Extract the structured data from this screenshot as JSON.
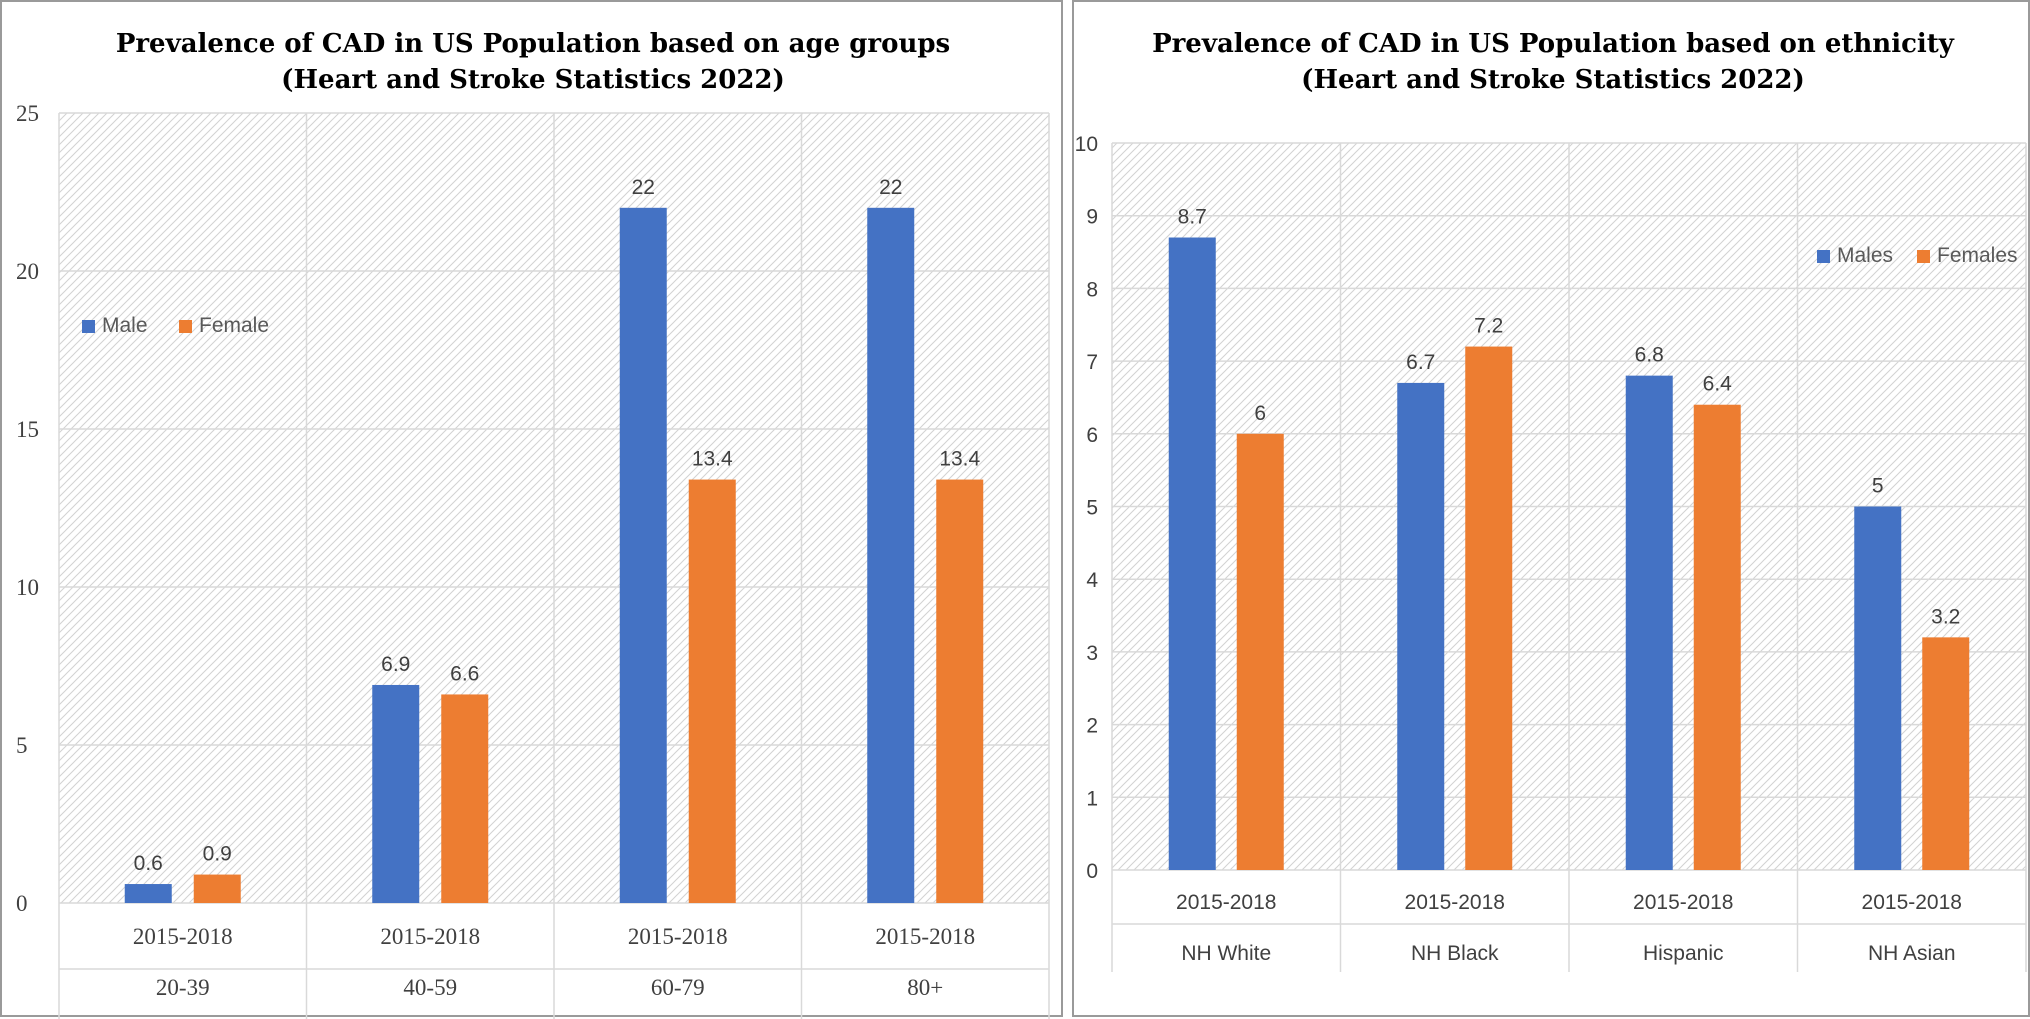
{
  "colors": {
    "male": "#4472C4",
    "female": "#ED7D31",
    "grid": "#D9D9D9",
    "text": "#404040"
  },
  "chart_data": [
    {
      "type": "bar",
      "title": "Prevalence of CAD in US Population  based on age groups",
      "subtitle": "(Heart and  Stroke Statistics 2022)",
      "period_label": "2015-2018",
      "categories": [
        "20-39",
        "40-59",
        "60-79",
        "80+"
      ],
      "series": [
        {
          "name": "Male",
          "values": [
            0.6,
            6.9,
            22,
            22
          ]
        },
        {
          "name": "Female",
          "values": [
            0.9,
            6.6,
            13.4,
            13.4
          ]
        }
      ],
      "ylim": [
        0,
        25
      ],
      "yticks": [
        0,
        5,
        10,
        15,
        20,
        25
      ],
      "legend_position": "left",
      "xlabel": "",
      "ylabel": "",
      "grid": true
    },
    {
      "type": "bar",
      "title": "Prevalence of CAD in US Population based on ethnicity",
      "subtitle": "(Heart and Stroke Statistics 2022)",
      "period_label": "2015-2018",
      "categories": [
        "NH White",
        "NH Black",
        "Hispanic",
        "NH Asian"
      ],
      "series": [
        {
          "name": "Males",
          "values": [
            8.7,
            6.7,
            6.8,
            5
          ]
        },
        {
          "name": "Females",
          "values": [
            6,
            7.2,
            6.4,
            3.2
          ]
        }
      ],
      "ylim": [
        0,
        10
      ],
      "yticks": [
        0,
        1,
        2,
        3,
        4,
        5,
        6,
        7,
        8,
        9,
        10
      ],
      "legend_position": "top-right",
      "xlabel": "",
      "ylabel": "",
      "grid": true
    }
  ]
}
